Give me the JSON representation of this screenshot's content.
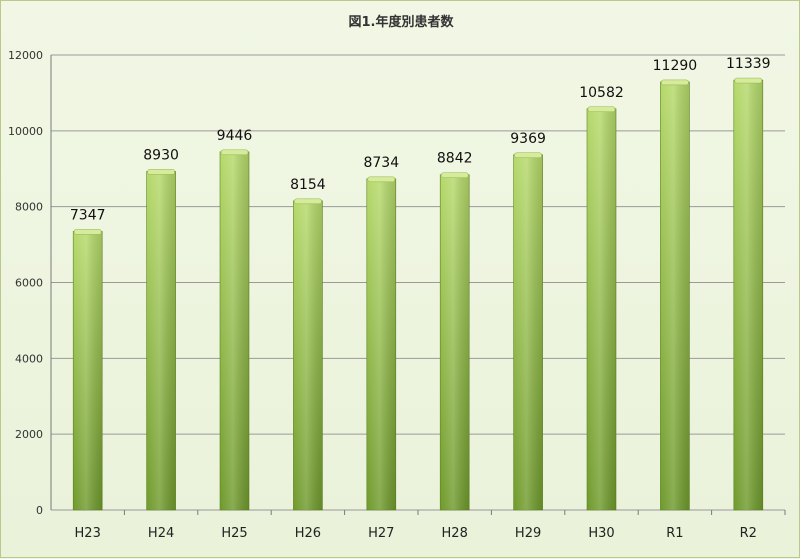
{
  "chart_data": {
    "type": "bar",
    "title": "図1.年度別患者数",
    "categories": [
      "H23",
      "H24",
      "H25",
      "H26",
      "H27",
      "H28",
      "H29",
      "H30",
      "R1",
      "R2"
    ],
    "series": [
      {
        "values": [
          7347,
          8930,
          9446,
          8154,
          8734,
          8842,
          9369,
          10582,
          11290,
          11339
        ]
      }
    ],
    "data_labels": [
      "7347",
      "8930",
      "9446",
      "8154",
      "8734",
      "8842",
      "9369",
      "10582",
      "11290",
      "11339"
    ],
    "yticks": [
      "0",
      "2000",
      "4000",
      "6000",
      "8000",
      "10000",
      "12000"
    ],
    "ylim": [
      0,
      12000
    ],
    "xlabel": "",
    "ylabel": "",
    "grid": true,
    "legend": "none",
    "colors": {
      "bar_light": "#b5d96a",
      "bar_dark": "#6f9a2c",
      "bar_cap": "#d6ec9c",
      "grid": "#9a9a9a",
      "background": "#eef5e0"
    }
  }
}
